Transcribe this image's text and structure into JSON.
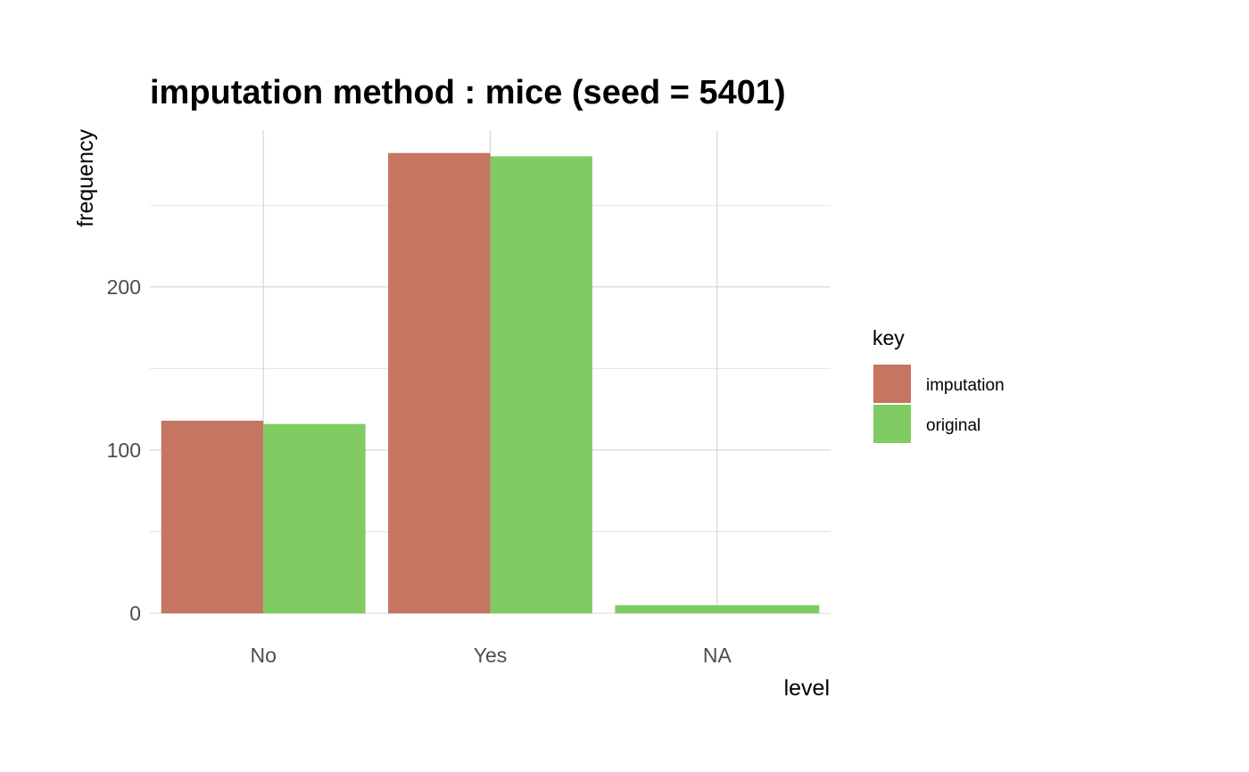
{
  "chart_data": {
    "type": "bar",
    "title": "imputation method : mice (seed = 5401)",
    "xlabel": "level",
    "ylabel": "frequency",
    "categories": [
      "No",
      "Yes",
      "NA"
    ],
    "series": [
      {
        "name": "imputation",
        "values": [
          118,
          282,
          0
        ]
      },
      {
        "name": "original",
        "values": [
          116,
          280,
          5
        ]
      }
    ],
    "ylim": [
      0,
      296
    ],
    "yticks": [
      0,
      100,
      200
    ],
    "grid": true,
    "legend": {
      "title": "key",
      "placement": "right"
    },
    "colors": {
      "imputation": "#c57562",
      "original": "#80cb62"
    }
  }
}
